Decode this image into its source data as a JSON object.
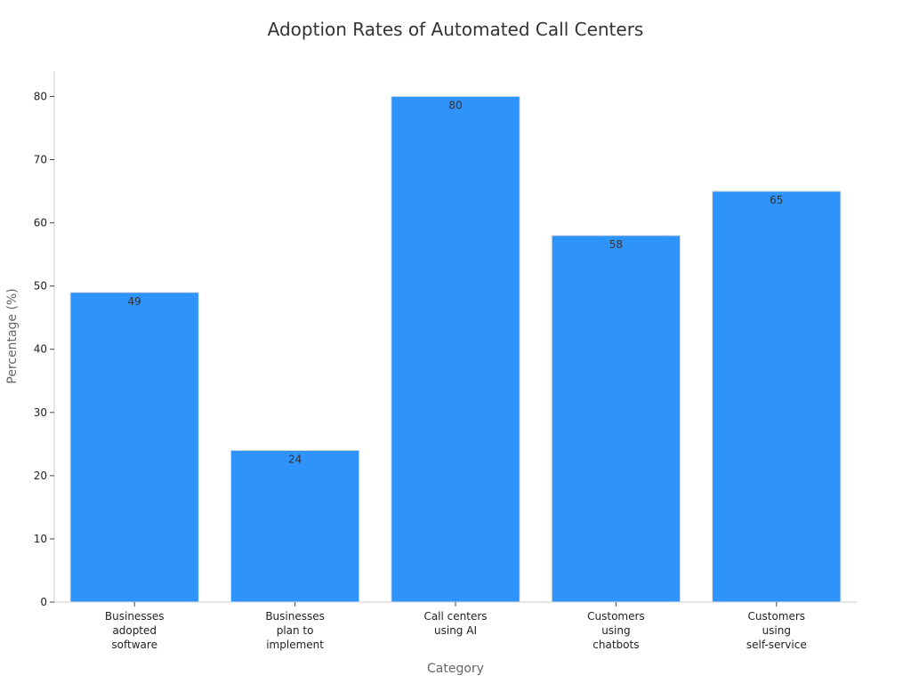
{
  "chart_data": {
    "type": "bar",
    "title": "Adoption Rates of Automated Call Centers",
    "xlabel": "Category",
    "ylabel": "Percentage (%)",
    "categories": [
      "Businesses adopted software",
      "Businesses plan to implement",
      "Call centers using AI",
      "Customers using chatbots",
      "Customers using self-service"
    ],
    "category_lines": [
      [
        "Businesses",
        "adopted",
        "software"
      ],
      [
        "Businesses",
        "plan to",
        "implement"
      ],
      [
        "Call centers",
        "using AI"
      ],
      [
        "Customers",
        "using",
        "chatbots"
      ],
      [
        "Customers",
        "using",
        "self-service"
      ]
    ],
    "values": [
      49,
      24,
      80,
      58,
      65
    ],
    "ylim": [
      0,
      84
    ],
    "yticks": [
      0,
      10,
      20,
      30,
      40,
      50,
      60,
      70,
      80
    ],
    "grid": false,
    "legend": "none",
    "bar_color": "#2e93fa",
    "bar_edge_color": "#dddddd",
    "axis_color": "#cccccc"
  }
}
